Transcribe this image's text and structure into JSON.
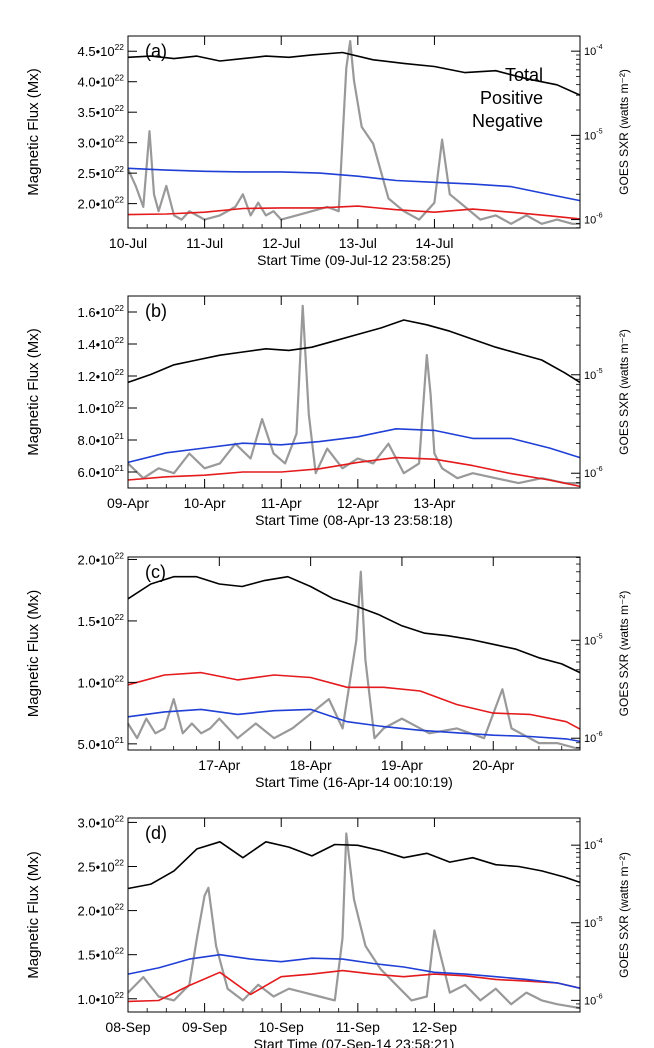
{
  "legend": {
    "total": "Total",
    "positive": "Positive",
    "negative": "Negative"
  },
  "colors": {
    "total": "#000000",
    "positive": "#e41a1c",
    "negative": "#1f3fd6",
    "goes": "#999999"
  },
  "chart_data": [
    {
      "type": "line",
      "panel_label": "(a)",
      "ylabel": "Magnetic Flux (Mx)",
      "y2label": "GOES SXR (watts m⁻²)",
      "xlabel": "Start Time (09-Jul-12 23:58:25)",
      "xlim": [
        0,
        5.9
      ],
      "xticks": [
        {
          "x": 0,
          "label": "10-Jul"
        },
        {
          "x": 1,
          "label": "11-Jul"
        },
        {
          "x": 2,
          "label": "12-Jul"
        },
        {
          "x": 3,
          "label": "13-Jul"
        },
        {
          "x": 4,
          "label": "14-Jul"
        }
      ],
      "ylim": [
        1.6,
        4.75
      ],
      "yticks": [
        {
          "v": 2.0,
          "m": "2.0",
          "e": "22"
        },
        {
          "v": 2.5,
          "m": "2.5",
          "e": "22"
        },
        {
          "v": 3.0,
          "m": "3.0",
          "e": "22"
        },
        {
          "v": 3.5,
          "m": "3.5",
          "e": "22"
        },
        {
          "v": 4.0,
          "m": "4.0",
          "e": "22"
        },
        {
          "v": 4.5,
          "m": "4.5",
          "e": "22"
        }
      ],
      "y2lim": [
        -6.1,
        -3.82
      ],
      "y2ticks": [
        {
          "v": -6,
          "m": "10",
          "e": "-6"
        },
        {
          "v": -5,
          "m": "10",
          "e": "-5"
        },
        {
          "v": -4,
          "m": "10",
          "e": "-4"
        }
      ],
      "show_legend": true,
      "series": [
        {
          "name": "Total",
          "x": [
            0,
            0.3,
            0.6,
            0.9,
            1.2,
            1.5,
            1.8,
            2.1,
            2.4,
            2.8,
            3.2,
            3.6,
            4.0,
            4.4,
            4.8,
            5.2,
            5.6,
            5.9
          ],
          "y": [
            4.4,
            4.42,
            4.38,
            4.42,
            4.34,
            4.38,
            4.42,
            4.4,
            4.44,
            4.48,
            4.36,
            4.3,
            4.25,
            4.15,
            4.18,
            4.05,
            3.95,
            3.78
          ]
        },
        {
          "name": "Positive",
          "x": [
            0,
            0.5,
            1.0,
            1.5,
            2.0,
            2.5,
            3.0,
            3.5,
            4.0,
            4.5,
            5.0,
            5.5,
            5.9
          ],
          "y": [
            1.82,
            1.83,
            1.86,
            1.92,
            1.93,
            1.93,
            1.96,
            1.9,
            1.86,
            1.91,
            1.86,
            1.8,
            1.75
          ]
        },
        {
          "name": "Negative",
          "x": [
            0,
            0.5,
            1.0,
            1.5,
            2.0,
            2.5,
            3.0,
            3.5,
            4.0,
            4.5,
            5.0,
            5.5,
            5.9
          ],
          "y": [
            2.58,
            2.55,
            2.53,
            2.52,
            2.52,
            2.5,
            2.45,
            2.38,
            2.35,
            2.32,
            2.28,
            2.15,
            2.05
          ]
        },
        {
          "name": "GOES SXR",
          "axis": "right",
          "x": [
            0,
            0.1,
            0.2,
            0.28,
            0.34,
            0.4,
            0.5,
            0.6,
            0.7,
            0.8,
            0.9,
            1.0,
            1.2,
            1.4,
            1.5,
            1.6,
            1.7,
            1.8,
            1.9,
            2.0,
            2.2,
            2.4,
            2.6,
            2.75,
            2.85,
            2.9,
            2.95,
            3.05,
            3.2,
            3.4,
            3.6,
            3.8,
            4.0,
            4.1,
            4.2,
            4.4,
            4.6,
            4.8,
            5.0,
            5.2,
            5.4,
            5.6,
            5.8,
            5.9
          ],
          "y": [
            -5.4,
            -5.6,
            -5.85,
            -4.95,
            -5.7,
            -5.9,
            -5.6,
            -5.95,
            -6.0,
            -5.9,
            -5.95,
            -6.0,
            -5.95,
            -5.85,
            -5.7,
            -5.95,
            -5.8,
            -5.95,
            -5.9,
            -6.0,
            -5.95,
            -5.9,
            -5.85,
            -5.9,
            -4.2,
            -3.88,
            -4.35,
            -4.9,
            -5.1,
            -5.75,
            -5.9,
            -6.0,
            -5.8,
            -5.05,
            -5.7,
            -5.85,
            -6.0,
            -5.95,
            -6.05,
            -5.95,
            -6.05,
            -6.0,
            -6.05,
            -6.05
          ]
        }
      ]
    },
    {
      "type": "line",
      "panel_label": "(b)",
      "ylabel": "Magnetic Flux (Mx)",
      "y2label": "GOES SXR (watts m⁻²)",
      "xlabel": "Start Time (08-Apr-13 23:58:18)",
      "xlim": [
        0,
        5.9
      ],
      "xticks": [
        {
          "x": 0,
          "label": "09-Apr"
        },
        {
          "x": 1,
          "label": "10-Apr"
        },
        {
          "x": 2,
          "label": "11-Apr"
        },
        {
          "x": 3,
          "label": "12-Apr"
        },
        {
          "x": 4,
          "label": "13-Apr"
        }
      ],
      "ylim": [
        0.5,
        1.7
      ],
      "yticks": [
        {
          "v": 0.6,
          "m": "6.0",
          "e": "21"
        },
        {
          "v": 0.8,
          "m": "8.0",
          "e": "21"
        },
        {
          "v": 1.0,
          "m": "1.0",
          "e": "22"
        },
        {
          "v": 1.2,
          "m": "1.2",
          "e": "22"
        },
        {
          "v": 1.4,
          "m": "1.4",
          "e": "22"
        },
        {
          "v": 1.6,
          "m": "1.6",
          "e": "22"
        }
      ],
      "y2lim": [
        -6.15,
        -4.2
      ],
      "y2ticks": [
        {
          "v": -6,
          "m": "10",
          "e": "-6"
        },
        {
          "v": -5,
          "m": "10",
          "e": "-5"
        }
      ],
      "show_legend": false,
      "series": [
        {
          "name": "Total",
          "x": [
            0,
            0.3,
            0.6,
            0.9,
            1.2,
            1.5,
            1.8,
            2.1,
            2.4,
            2.7,
            3.0,
            3.3,
            3.6,
            3.9,
            4.2,
            4.5,
            4.8,
            5.1,
            5.4,
            5.7,
            5.9
          ],
          "y": [
            1.16,
            1.21,
            1.27,
            1.3,
            1.33,
            1.35,
            1.37,
            1.36,
            1.38,
            1.42,
            1.46,
            1.5,
            1.55,
            1.52,
            1.48,
            1.43,
            1.38,
            1.34,
            1.3,
            1.22,
            1.16
          ]
        },
        {
          "name": "Positive",
          "x": [
            0,
            0.5,
            1.0,
            1.5,
            2.0,
            2.5,
            3.0,
            3.5,
            4.0,
            4.5,
            5.0,
            5.5,
            5.9
          ],
          "y": [
            0.55,
            0.57,
            0.58,
            0.6,
            0.6,
            0.62,
            0.66,
            0.69,
            0.68,
            0.64,
            0.59,
            0.55,
            0.51
          ]
        },
        {
          "name": "Negative",
          "x": [
            0,
            0.5,
            1.0,
            1.5,
            2.0,
            2.5,
            3.0,
            3.5,
            4.0,
            4.5,
            5.0,
            5.5,
            5.9
          ],
          "y": [
            0.66,
            0.72,
            0.75,
            0.78,
            0.77,
            0.79,
            0.82,
            0.87,
            0.86,
            0.81,
            0.81,
            0.75,
            0.69
          ]
        },
        {
          "name": "GOES SXR",
          "axis": "right",
          "x": [
            0,
            0.2,
            0.4,
            0.6,
            0.8,
            1.0,
            1.2,
            1.4,
            1.6,
            1.75,
            1.9,
            2.05,
            2.2,
            2.28,
            2.36,
            2.45,
            2.6,
            2.8,
            3.0,
            3.2,
            3.4,
            3.6,
            3.8,
            3.9,
            3.95,
            4.0,
            4.1,
            4.3,
            4.5,
            4.8,
            5.1,
            5.4,
            5.7,
            5.9
          ],
          "y": [
            -5.9,
            -6.05,
            -5.95,
            -6.0,
            -5.8,
            -5.95,
            -5.9,
            -5.7,
            -5.85,
            -5.45,
            -5.8,
            -5.9,
            -5.6,
            -4.3,
            -5.4,
            -6.0,
            -5.75,
            -5.95,
            -5.85,
            -5.9,
            -5.7,
            -6.0,
            -5.9,
            -4.8,
            -5.2,
            -5.8,
            -5.95,
            -6.05,
            -6.0,
            -6.05,
            -6.1,
            -6.05,
            -6.1,
            -6.1
          ]
        }
      ]
    },
    {
      "type": "line",
      "panel_label": "(c)",
      "ylabel": "Magnetic Flux (Mx)",
      "y2label": "GOES SXR (watts m⁻²)",
      "xlabel": "Start Time (16-Apr-14 00:10:19)",
      "xlim": [
        0,
        4.95
      ],
      "xticks": [
        {
          "x": 1,
          "label": "17-Apr"
        },
        {
          "x": 2,
          "label": "18-Apr"
        },
        {
          "x": 3,
          "label": "19-Apr"
        },
        {
          "x": 4,
          "label": "20-Apr"
        }
      ],
      "ylim": [
        0.45,
        2.02
      ],
      "yticks": [
        {
          "v": 0.5,
          "m": "5.0",
          "e": "21"
        },
        {
          "v": 1.0,
          "m": "1.0",
          "e": "22"
        },
        {
          "v": 1.5,
          "m": "1.5",
          "e": "22"
        },
        {
          "v": 2.0,
          "m": "2.0",
          "e": "22"
        }
      ],
      "y2lim": [
        -6.12,
        -4.15
      ],
      "y2ticks": [
        {
          "v": -6,
          "m": "10",
          "e": "-6"
        },
        {
          "v": -5,
          "m": "10",
          "e": "-5"
        }
      ],
      "show_legend": false,
      "series": [
        {
          "name": "Total",
          "x": [
            0,
            0.25,
            0.5,
            0.75,
            1.0,
            1.25,
            1.5,
            1.75,
            2.0,
            2.25,
            2.5,
            2.75,
            3.0,
            3.25,
            3.5,
            3.75,
            4.0,
            4.25,
            4.5,
            4.75,
            4.95
          ],
          "y": [
            1.68,
            1.8,
            1.86,
            1.86,
            1.8,
            1.78,
            1.83,
            1.86,
            1.78,
            1.68,
            1.62,
            1.55,
            1.46,
            1.4,
            1.38,
            1.35,
            1.31,
            1.27,
            1.2,
            1.15,
            1.08
          ]
        },
        {
          "name": "Positive",
          "x": [
            0,
            0.4,
            0.8,
            1.2,
            1.6,
            2.0,
            2.4,
            2.8,
            3.2,
            3.6,
            4.0,
            4.4,
            4.8,
            4.95
          ],
          "y": [
            0.98,
            1.06,
            1.08,
            1.02,
            1.06,
            1.04,
            0.96,
            0.96,
            0.93,
            0.82,
            0.75,
            0.74,
            0.68,
            0.62
          ]
        },
        {
          "name": "Negative",
          "x": [
            0,
            0.4,
            0.8,
            1.2,
            1.6,
            2.0,
            2.4,
            2.8,
            3.2,
            3.6,
            4.0,
            4.4,
            4.8,
            4.95
          ],
          "y": [
            0.72,
            0.76,
            0.78,
            0.74,
            0.77,
            0.78,
            0.68,
            0.64,
            0.61,
            0.59,
            0.57,
            0.56,
            0.54,
            0.52
          ]
        },
        {
          "name": "GOES SXR",
          "axis": "right",
          "x": [
            0,
            0.1,
            0.2,
            0.3,
            0.4,
            0.5,
            0.6,
            0.7,
            0.8,
            0.9,
            1.0,
            1.2,
            1.4,
            1.6,
            1.8,
            2.0,
            2.2,
            2.35,
            2.5,
            2.55,
            2.6,
            2.7,
            2.8,
            3.0,
            3.3,
            3.6,
            3.9,
            4.1,
            4.2,
            4.3,
            4.5,
            4.7,
            4.9,
            4.95
          ],
          "y": [
            -5.85,
            -6.0,
            -5.8,
            -5.95,
            -5.9,
            -5.6,
            -5.95,
            -5.85,
            -5.95,
            -5.9,
            -5.8,
            -6.0,
            -5.85,
            -6.0,
            -5.9,
            -5.75,
            -5.6,
            -5.9,
            -5.0,
            -4.3,
            -5.2,
            -6.0,
            -5.9,
            -5.8,
            -5.95,
            -5.9,
            -6.0,
            -5.5,
            -5.9,
            -5.95,
            -6.05,
            -6.05,
            -6.1,
            -6.1
          ]
        }
      ]
    },
    {
      "type": "line",
      "panel_label": "(d)",
      "ylabel": "Magnetic Flux (Mx)",
      "y2label": "GOES SXR (watts m⁻²)",
      "xlabel": "Start Time (07-Sep-14 23:58:21)",
      "xlim": [
        0,
        5.9
      ],
      "xticks": [
        {
          "x": 0,
          "label": "08-Sep"
        },
        {
          "x": 1,
          "label": "09-Sep"
        },
        {
          "x": 2,
          "label": "10-Sep"
        },
        {
          "x": 3,
          "label": "11-Sep"
        },
        {
          "x": 4,
          "label": "12-Sep"
        }
      ],
      "ylim": [
        0.85,
        3.05
      ],
      "yticks": [
        {
          "v": 1.0,
          "m": "1.0",
          "e": "22"
        },
        {
          "v": 1.5,
          "m": "1.5",
          "e": "22"
        },
        {
          "v": 2.0,
          "m": "2.0",
          "e": "22"
        },
        {
          "v": 2.5,
          "m": "2.5",
          "e": "22"
        },
        {
          "v": 3.0,
          "m": "3.0",
          "e": "22"
        }
      ],
      "y2lim": [
        -6.15,
        -3.65
      ],
      "y2ticks": [
        {
          "v": -6,
          "m": "10",
          "e": "-6"
        },
        {
          "v": -5,
          "m": "10",
          "e": "-5"
        },
        {
          "v": -4,
          "m": "10",
          "e": "-4"
        }
      ],
      "show_legend": false,
      "series": [
        {
          "name": "Total",
          "x": [
            0,
            0.3,
            0.6,
            0.9,
            1.2,
            1.5,
            1.8,
            2.1,
            2.4,
            2.7,
            3.0,
            3.3,
            3.6,
            3.9,
            4.2,
            4.5,
            4.8,
            5.1,
            5.4,
            5.7,
            5.9
          ],
          "y": [
            2.25,
            2.3,
            2.45,
            2.7,
            2.78,
            2.6,
            2.78,
            2.72,
            2.62,
            2.75,
            2.74,
            2.68,
            2.6,
            2.65,
            2.55,
            2.6,
            2.52,
            2.5,
            2.45,
            2.38,
            2.32
          ]
        },
        {
          "name": "Positive",
          "x": [
            0,
            0.4,
            0.8,
            1.2,
            1.6,
            2.0,
            2.4,
            2.8,
            3.2,
            3.6,
            4.0,
            4.4,
            4.8,
            5.2,
            5.6,
            5.9
          ],
          "y": [
            0.97,
            0.98,
            1.15,
            1.3,
            1.05,
            1.25,
            1.28,
            1.32,
            1.28,
            1.25,
            1.28,
            1.26,
            1.22,
            1.2,
            1.18,
            1.12
          ]
        },
        {
          "name": "Negative",
          "x": [
            0,
            0.4,
            0.8,
            1.2,
            1.6,
            2.0,
            2.4,
            2.8,
            3.2,
            3.6,
            4.0,
            4.4,
            4.8,
            5.2,
            5.6,
            5.9
          ],
          "y": [
            1.28,
            1.35,
            1.45,
            1.5,
            1.45,
            1.42,
            1.46,
            1.45,
            1.4,
            1.36,
            1.3,
            1.28,
            1.25,
            1.22,
            1.18,
            1.12
          ]
        },
        {
          "name": "GOES SXR",
          "axis": "right",
          "x": [
            0,
            0.2,
            0.4,
            0.6,
            0.8,
            0.9,
            1.0,
            1.05,
            1.15,
            1.3,
            1.5,
            1.7,
            1.9,
            2.1,
            2.3,
            2.5,
            2.7,
            2.8,
            2.85,
            2.95,
            3.1,
            3.3,
            3.5,
            3.7,
            3.9,
            4.0,
            4.2,
            4.4,
            4.6,
            4.8,
            5.0,
            5.2,
            5.4,
            5.6,
            5.9
          ],
          "y": [
            -5.9,
            -5.7,
            -5.95,
            -6.0,
            -5.8,
            -5.2,
            -4.65,
            -4.55,
            -5.3,
            -5.85,
            -6.0,
            -5.8,
            -5.95,
            -5.85,
            -5.9,
            -5.95,
            -6.0,
            -5.2,
            -3.85,
            -4.7,
            -5.3,
            -5.6,
            -5.8,
            -6.0,
            -5.95,
            -5.1,
            -5.9,
            -5.8,
            -6.0,
            -5.85,
            -6.05,
            -5.9,
            -6.0,
            -6.05,
            -6.1
          ]
        }
      ]
    }
  ]
}
